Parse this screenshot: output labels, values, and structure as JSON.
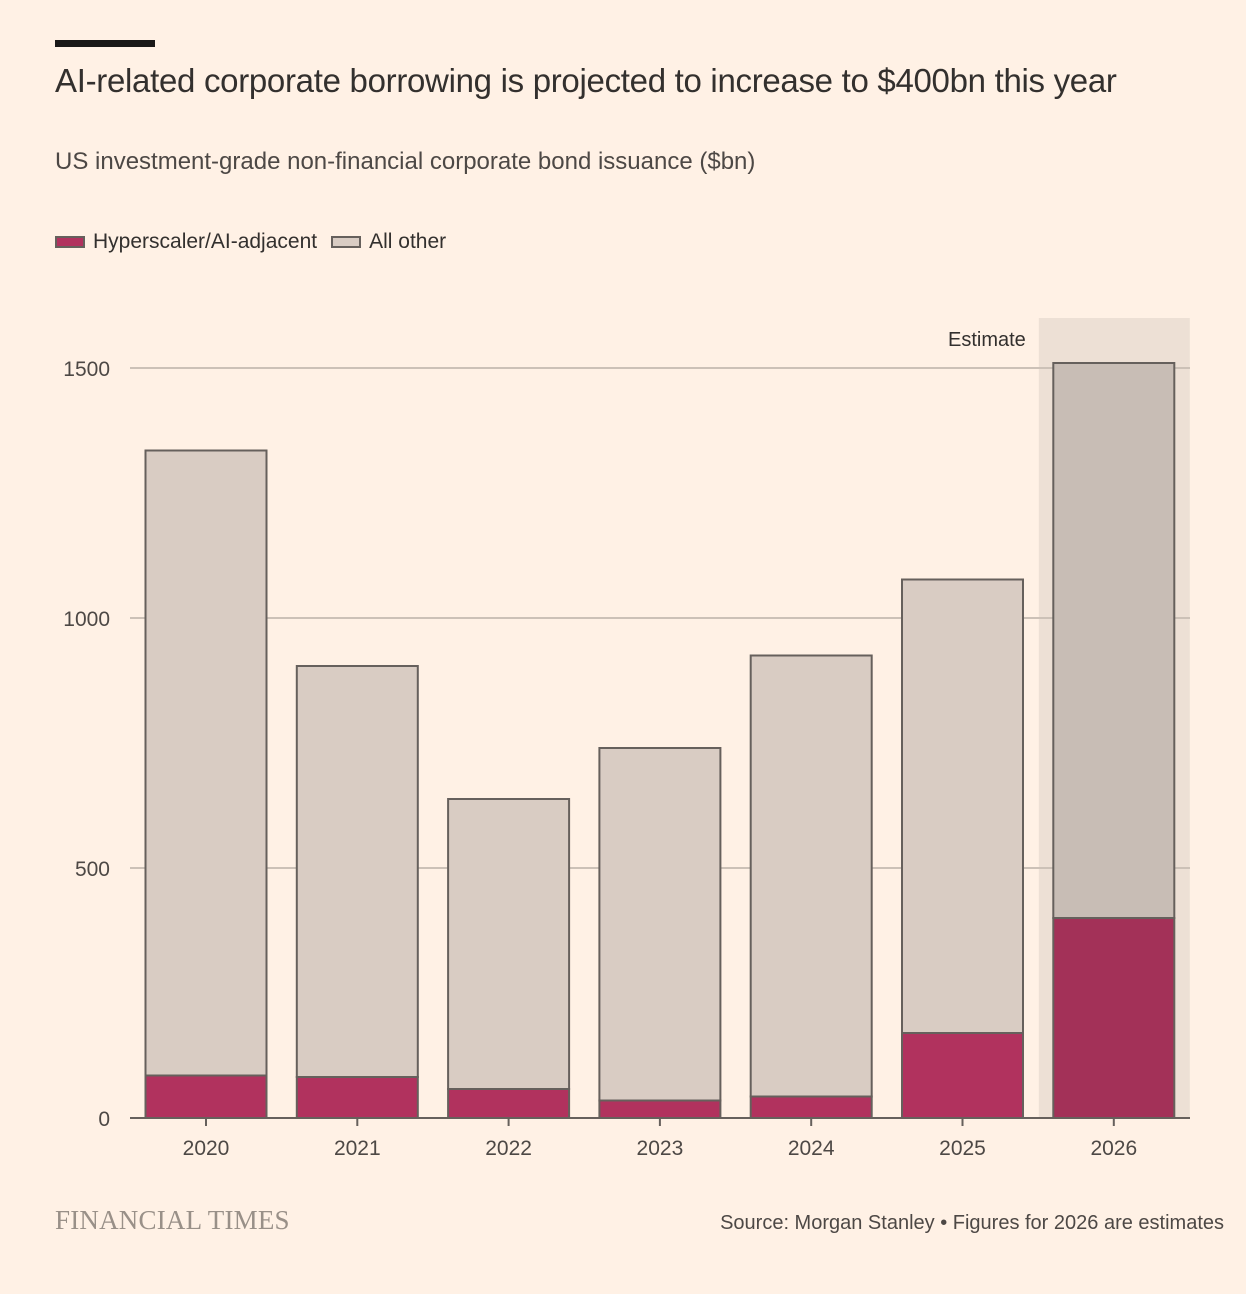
{
  "header": {
    "title": "AI-related corporate borrowing is projected to increase to $400bn this year",
    "subtitle": "US investment-grade non-financial corporate bond issuance ($bn)"
  },
  "legend": {
    "items": [
      {
        "label": "Hyperscaler/AI-adjacent",
        "color": "#b1325e"
      },
      {
        "label": "All other",
        "color": "#d9ccc3"
      }
    ]
  },
  "chart_data": {
    "type": "bar",
    "stacked": true,
    "title": "AI-related corporate borrowing is projected to increase to $400bn this year",
    "subtitle": "US investment-grade non-financial corporate bond issuance ($bn)",
    "xlabel": "",
    "ylabel": "",
    "categories": [
      "2020",
      "2021",
      "2022",
      "2023",
      "2024",
      "2025",
      "2026"
    ],
    "series": [
      {
        "name": "Hyperscaler/AI-adjacent",
        "values": [
          85,
          82,
          58,
          35,
          43,
          170,
          400
        ],
        "color": "#b1325e",
        "estimate_color": "#a33158"
      },
      {
        "name": "All other",
        "values": [
          1250,
          822,
          580,
          705,
          882,
          907,
          1110
        ],
        "color": "#d9ccc3",
        "estimate_color": "#c8bdb5"
      }
    ],
    "ylim": [
      0,
      1500
    ],
    "yticks": [
      "0",
      "500",
      "1000",
      "1500"
    ],
    "grid": true,
    "estimate_category": "2026",
    "estimate_label": "Estimate",
    "estimate_band_color": "#ede0d5",
    "legend_position": "top-left"
  },
  "footer": {
    "logo": "FINANCIAL TIMES",
    "source": "Source: Morgan Stanley • Figures for 2026 are estimates"
  }
}
